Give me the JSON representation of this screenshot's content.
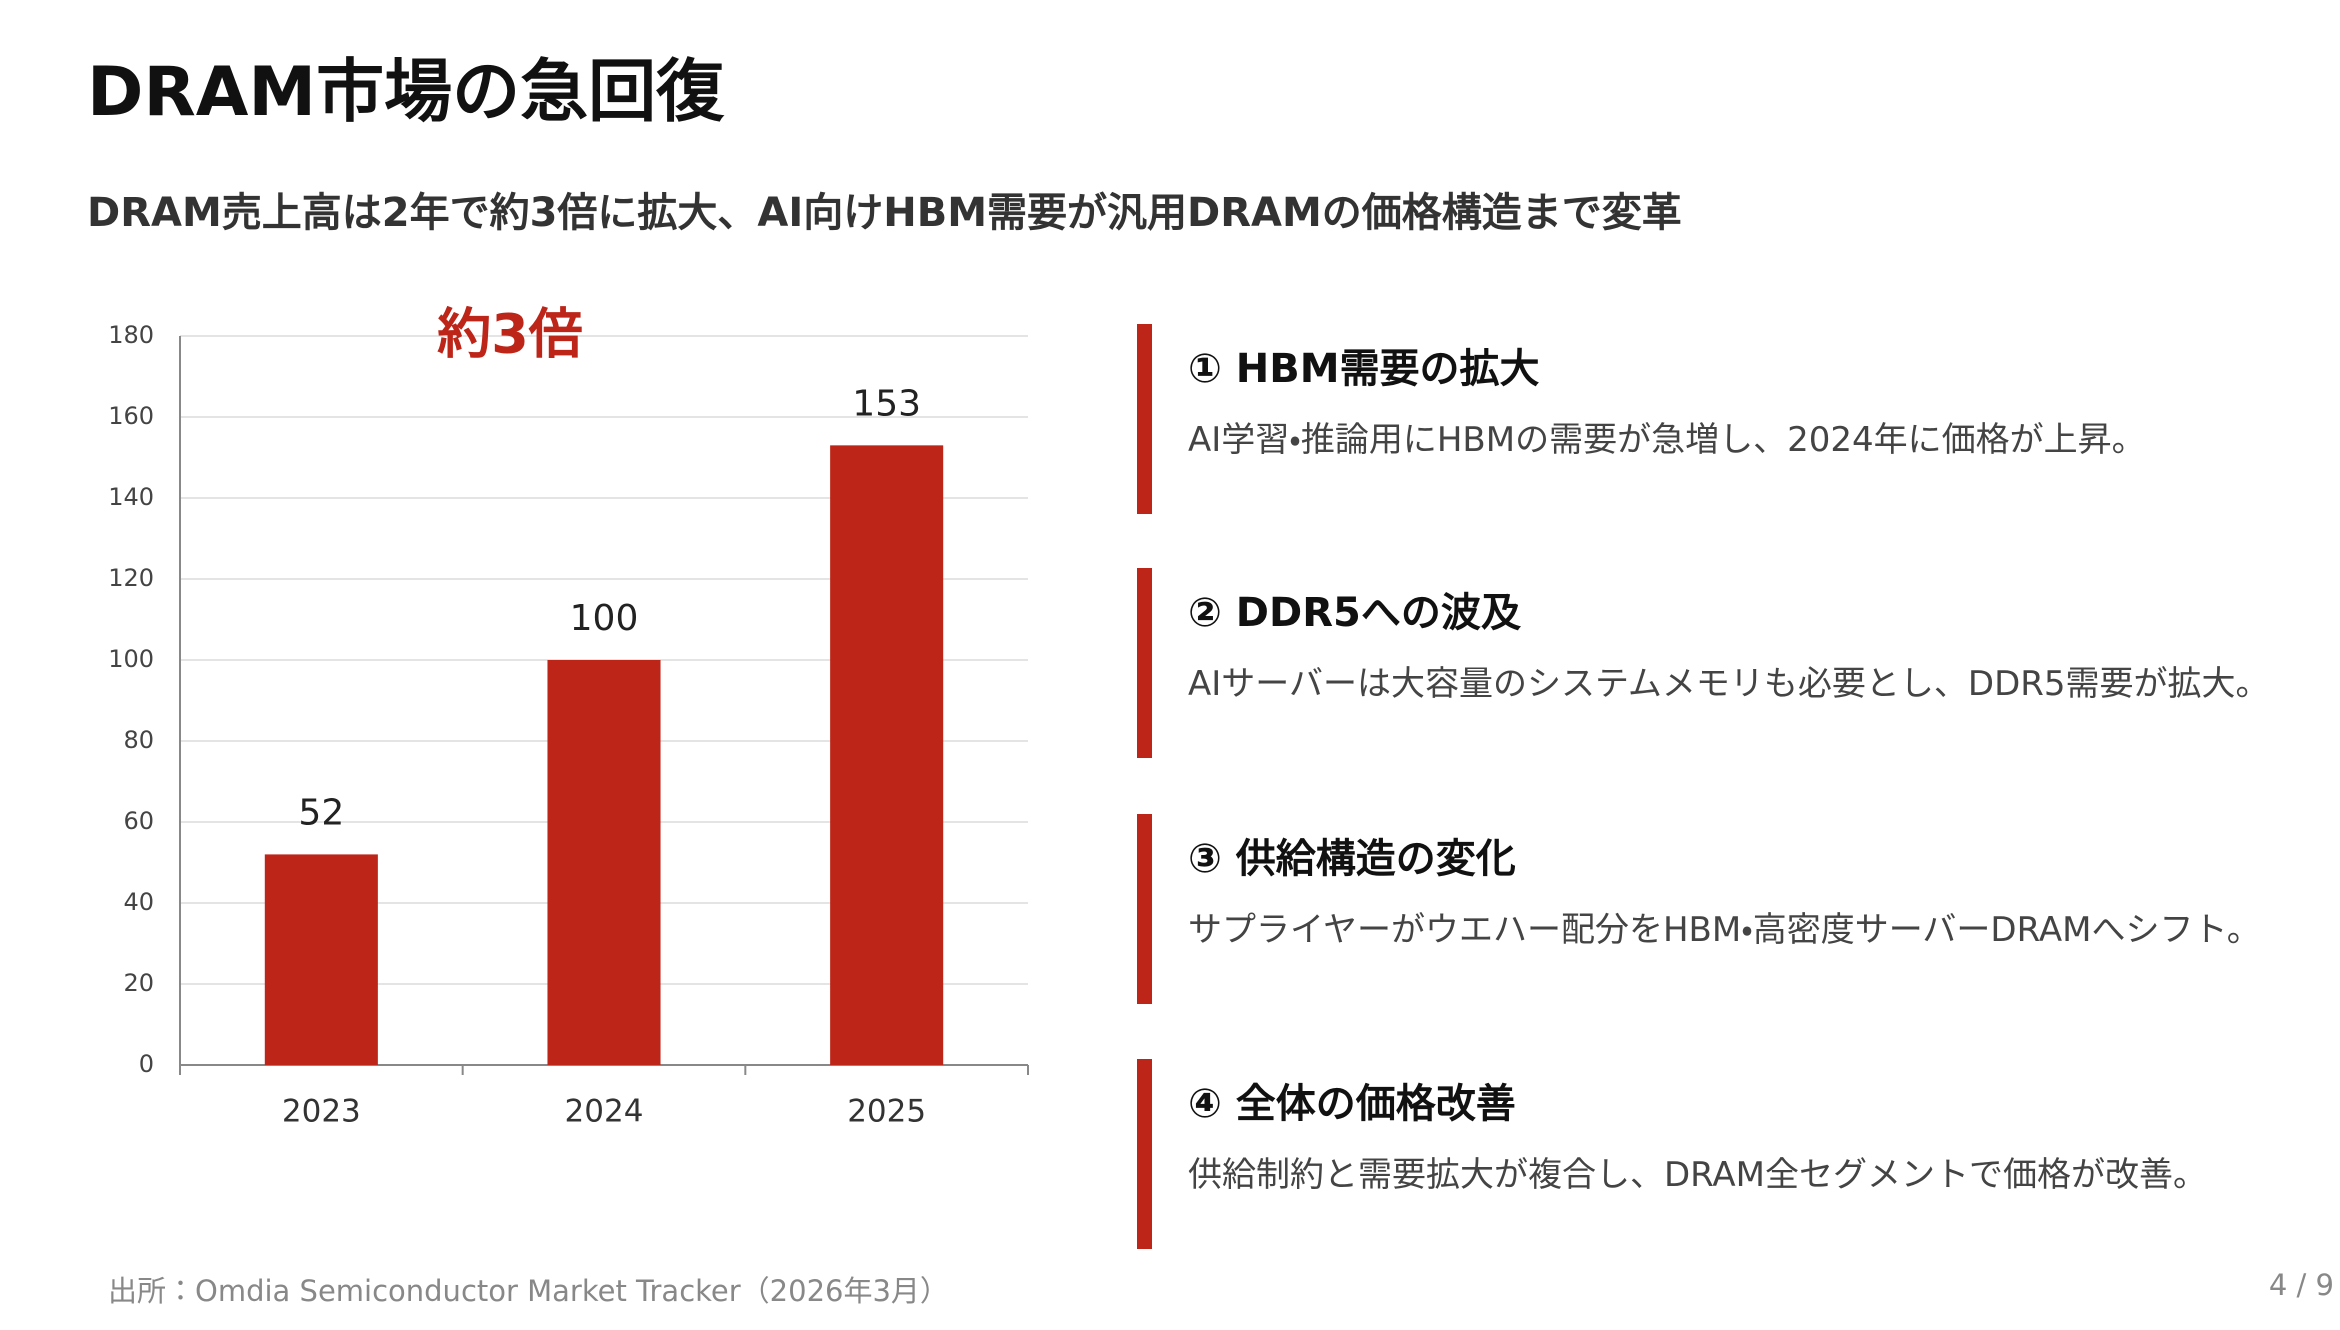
{
  "header": {
    "title": "DRAM市場の急回復",
    "subtitle": "DRAM売上高は2年で約3倍に拡大、AI向けHBM需要が汎用DRAMの価格構造まで変革"
  },
  "chart_data": {
    "type": "bar",
    "annotation": "約3倍",
    "categories": [
      "2023",
      "2024",
      "2025"
    ],
    "values": [
      52,
      100,
      153
    ],
    "color": "#bd2519",
    "ylim": [
      0,
      180
    ],
    "yticks": [
      0,
      20,
      40,
      60,
      80,
      100,
      120,
      140,
      160,
      180
    ],
    "grid": true
  },
  "points": [
    {
      "heading": "① HBM需要の拡大",
      "body": "AI学習・推論用にHBMの需要が急増し、2024年に価格が上昇。"
    },
    {
      "heading": "② DDR5への波及",
      "body": "AIサーバーは大容量のシステムメモリも必要とし、DDR5需要が拡大。"
    },
    {
      "heading": "③ 供給構造の変化",
      "body": "サプライヤーがウエハー配分をHBM・高密度サーバーDRAMへシフト。"
    },
    {
      "heading": "④ 全体の価格改善",
      "body": "供給制約と需要拡大が複合し、DRAM全セグメントで価格が改善。"
    }
  ],
  "footer": {
    "source": "出所：Omdia Semiconductor Market Tracker（2026年3月）",
    "page": "4 / 9"
  }
}
